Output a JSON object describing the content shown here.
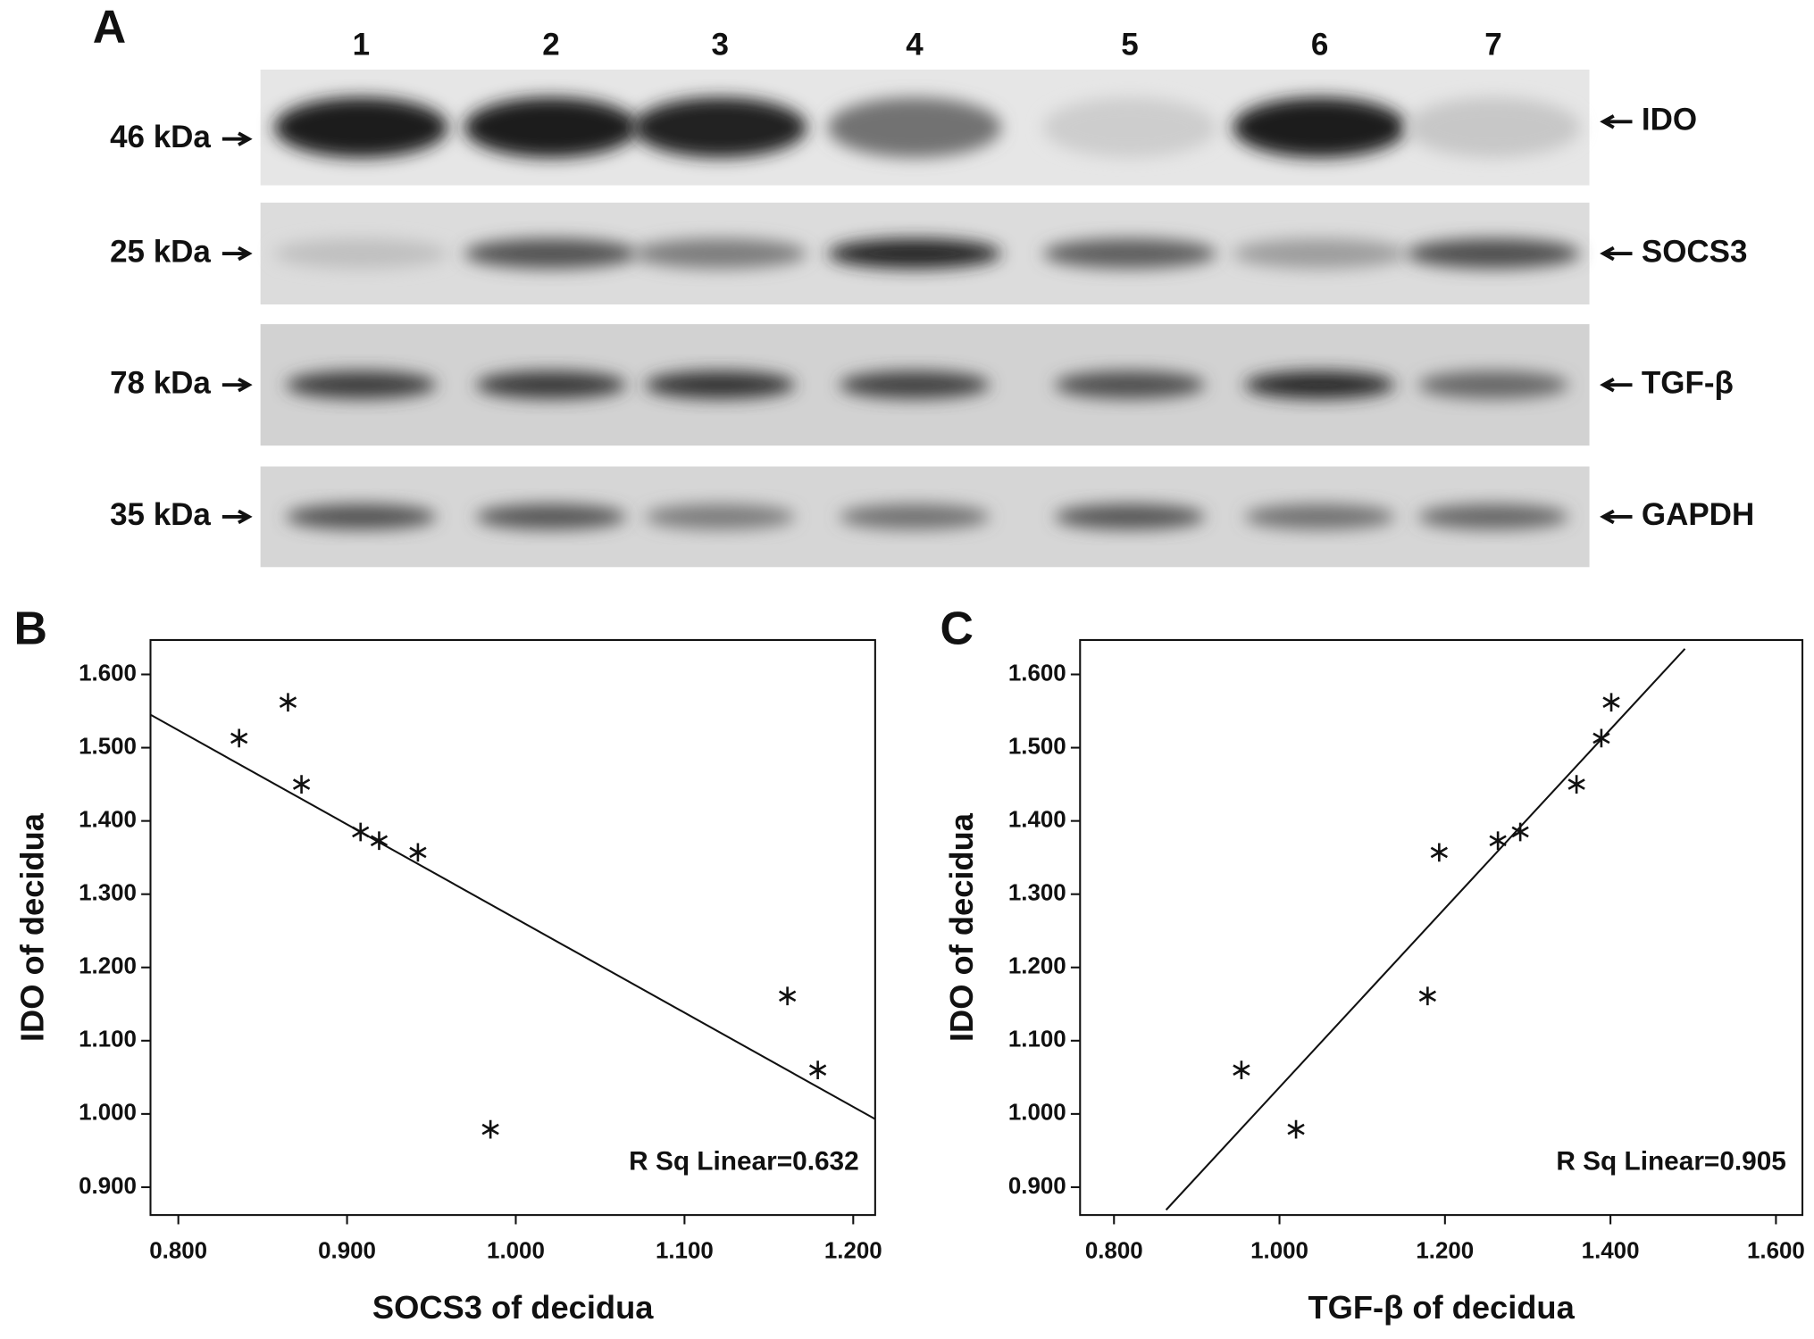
{
  "blot": {
    "panel": "A",
    "lanes": [
      "1",
      "2",
      "3",
      "4",
      "5",
      "6",
      "7"
    ],
    "rows": [
      {
        "weight": "46 kDa",
        "protein": "IDO"
      },
      {
        "weight": "25 kDa",
        "protein": "SOCS3"
      },
      {
        "weight": "78 kDa",
        "protein": "TGF-β"
      },
      {
        "weight": "35 kDa",
        "protein": "GAPDH"
      }
    ]
  },
  "chart_data": [
    {
      "type": "scatter",
      "panel": "B",
      "xlabel": "SOCS3 of decidua",
      "ylabel": "IDO of decidua",
      "annotation": "R Sq Linear=0.632",
      "x": [
        0.836,
        0.865,
        0.873,
        0.908,
        0.919,
        0.942,
        1.161,
        1.179,
        0.985
      ],
      "values": [
        1.513,
        1.562,
        1.45,
        1.385,
        1.373,
        1.357,
        1.161,
        1.06,
        0.979
      ],
      "fit_line": {
        "x": [
          0.7835,
          1.213
        ],
        "y": [
          1.545,
          0.993
        ]
      },
      "color": "#111111",
      "xlim": [
        0.7835,
        1.213
      ],
      "ylim": [
        0.862,
        1.647
      ],
      "xticks": [
        {
          "value": 0.8,
          "label": "0.800"
        },
        {
          "value": 0.9,
          "label": "0.900"
        },
        {
          "value": 1.0,
          "label": "1.000"
        },
        {
          "value": 1.1,
          "label": "1.100"
        },
        {
          "value": 1.2,
          "label": "1.200"
        }
      ],
      "yticks": [
        {
          "value": 0.9,
          "label": "0.900"
        },
        {
          "value": 1.0,
          "label": "1.000"
        },
        {
          "value": 1.1,
          "label": "1.100"
        },
        {
          "value": 1.2,
          "label": "1.200"
        },
        {
          "value": 1.3,
          "label": "1.300"
        },
        {
          "value": 1.4,
          "label": "1.400"
        },
        {
          "value": 1.5,
          "label": "1.500"
        },
        {
          "value": 1.6,
          "label": "1.600"
        }
      ]
    },
    {
      "type": "scatter",
      "panel": "C",
      "xlabel": "TGF-β of decidua",
      "ylabel": "IDO of decidua",
      "annotation": "R Sq Linear=0.905",
      "x": [
        0.954,
        1.02,
        1.179,
        1.193,
        1.264,
        1.291,
        1.359,
        1.389,
        1.401
      ],
      "values": [
        1.06,
        0.979,
        1.161,
        1.357,
        1.373,
        1.385,
        1.45,
        1.513,
        1.562
      ],
      "fit_line": {
        "x": [
          0.863,
          1.49
        ],
        "y": [
          0.869,
          1.635
        ]
      },
      "color": "#111111",
      "xlim": [
        0.759,
        1.632
      ],
      "ylim": [
        0.862,
        1.647
      ],
      "xticks": [
        {
          "value": 0.8,
          "label": "0.800"
        },
        {
          "value": 1.0,
          "label": "1.000"
        },
        {
          "value": 1.2,
          "label": "1.200"
        },
        {
          "value": 1.4,
          "label": "1.400"
        },
        {
          "value": 1.6,
          "label": "1.600"
        }
      ],
      "yticks": [
        {
          "value": 0.9,
          "label": "0.900"
        },
        {
          "value": 1.0,
          "label": "1.000"
        },
        {
          "value": 1.1,
          "label": "1.100"
        },
        {
          "value": 1.2,
          "label": "1.200"
        },
        {
          "value": 1.3,
          "label": "1.300"
        },
        {
          "value": 1.4,
          "label": "1.400"
        },
        {
          "value": 1.5,
          "label": "1.500"
        },
        {
          "value": 1.6,
          "label": "1.600"
        }
      ]
    }
  ]
}
